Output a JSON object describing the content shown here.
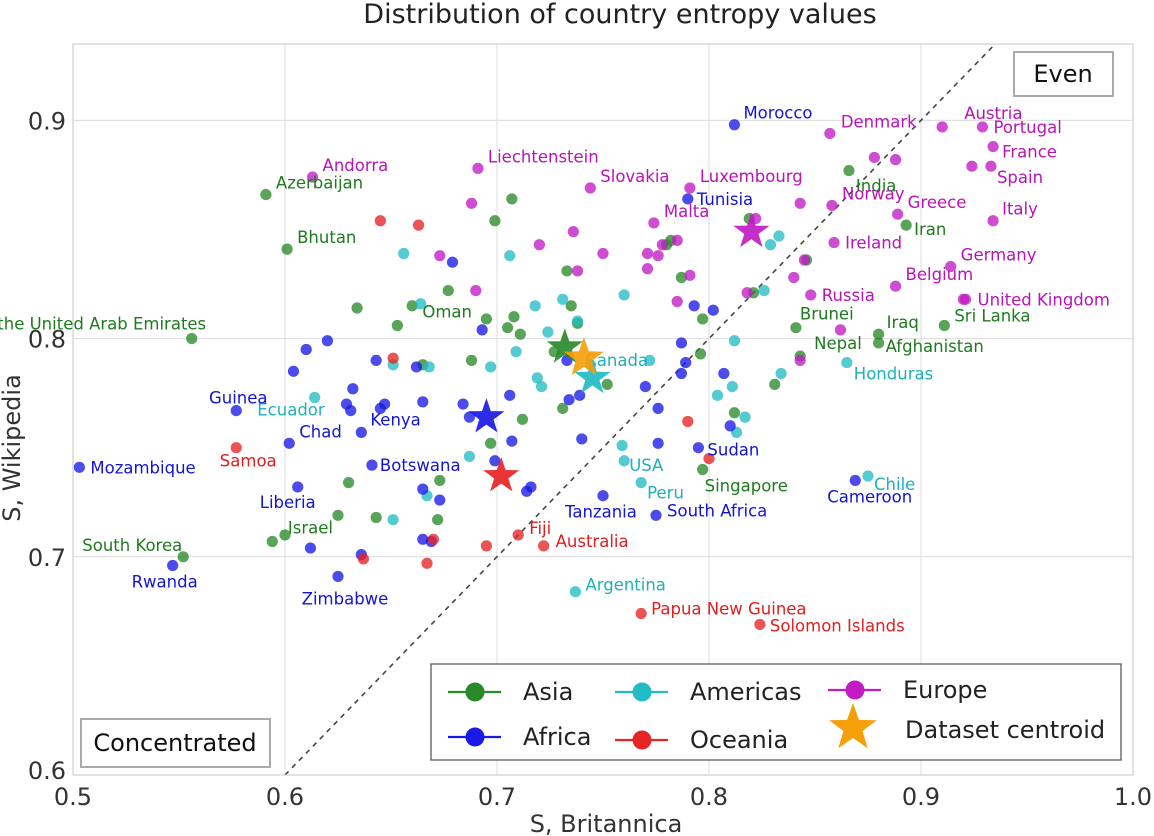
{
  "chart_data": {
    "type": "scatter",
    "title": "Distribution of country entropy values",
    "xlabel": "S, Britannica",
    "ylabel": "S, Wikipedia",
    "xlim": [
      0.5,
      1.0
    ],
    "ylim": [
      0.6,
      0.935
    ],
    "xticks": [
      "0.5",
      "0.6",
      "0.7",
      "0.8",
      "0.9",
      "1.0"
    ],
    "yticks": [
      "0.6",
      "0.7",
      "0.8",
      "0.9"
    ],
    "grid": true,
    "diagonal_reference_line": true,
    "region_labels": {
      "even": "Even",
      "concentrated": "Concentrated"
    },
    "legend_position": "lower-right",
    "series": [
      {
        "name": "Asia",
        "color": "#2a8a2a",
        "points": [
          {
            "x": 0.591,
            "y": 0.866,
            "label": "Azerbaijan"
          },
          {
            "x": 0.601,
            "y": 0.841,
            "label": "Bhutan"
          },
          {
            "x": 0.556,
            "y": 0.8,
            "label": "the United Arab Emirates"
          },
          {
            "x": 0.653,
            "y": 0.806,
            "label": "Oman"
          },
          {
            "x": 0.552,
            "y": 0.7,
            "label": "South Korea"
          },
          {
            "x": 0.625,
            "y": 0.719,
            "label": "Israel"
          },
          {
            "x": 0.797,
            "y": 0.74,
            "label": "Singapore"
          },
          {
            "x": 0.866,
            "y": 0.877,
            "label": "India"
          },
          {
            "x": 0.893,
            "y": 0.852,
            "label": "Iran"
          },
          {
            "x": 0.841,
            "y": 0.805,
            "label": "Brunei"
          },
          {
            "x": 0.88,
            "y": 0.802,
            "label": "Iraq"
          },
          {
            "x": 0.88,
            "y": 0.798,
            "label": "Afghanistan"
          },
          {
            "x": 0.843,
            "y": 0.792,
            "label": "Nepal"
          },
          {
            "x": 0.911,
            "y": 0.806,
            "label": "Sri Lanka"
          },
          {
            "x": 0.594,
            "y": 0.707
          },
          {
            "x": 0.6,
            "y": 0.71
          },
          {
            "x": 0.63,
            "y": 0.734
          },
          {
            "x": 0.643,
            "y": 0.718
          },
          {
            "x": 0.672,
            "y": 0.717
          },
          {
            "x": 0.673,
            "y": 0.735
          },
          {
            "x": 0.665,
            "y": 0.788
          },
          {
            "x": 0.634,
            "y": 0.814
          },
          {
            "x": 0.66,
            "y": 0.815
          },
          {
            "x": 0.677,
            "y": 0.822
          },
          {
            "x": 0.695,
            "y": 0.809
          },
          {
            "x": 0.705,
            "y": 0.805
          },
          {
            "x": 0.708,
            "y": 0.81
          },
          {
            "x": 0.711,
            "y": 0.802
          },
          {
            "x": 0.688,
            "y": 0.79
          },
          {
            "x": 0.733,
            "y": 0.831
          },
          {
            "x": 0.738,
            "y": 0.807
          },
          {
            "x": 0.735,
            "y": 0.815
          },
          {
            "x": 0.699,
            "y": 0.854
          },
          {
            "x": 0.707,
            "y": 0.864
          },
          {
            "x": 0.727,
            "y": 0.794
          },
          {
            "x": 0.752,
            "y": 0.779
          },
          {
            "x": 0.731,
            "y": 0.768
          },
          {
            "x": 0.712,
            "y": 0.763
          },
          {
            "x": 0.697,
            "y": 0.752
          },
          {
            "x": 0.782,
            "y": 0.845
          },
          {
            "x": 0.78,
            "y": 0.843
          },
          {
            "x": 0.787,
            "y": 0.828
          },
          {
            "x": 0.797,
            "y": 0.809
          },
          {
            "x": 0.796,
            "y": 0.793
          },
          {
            "x": 0.812,
            "y": 0.766
          },
          {
            "x": 0.831,
            "y": 0.779
          },
          {
            "x": 0.819,
            "y": 0.855
          },
          {
            "x": 0.846,
            "y": 0.836
          },
          {
            "x": 0.821,
            "y": 0.821
          }
        ]
      },
      {
        "name": "Americas",
        "color": "#22bcc4",
        "points": [
          {
            "x": 0.744,
            "y": 0.788,
            "label": "Canada"
          },
          {
            "x": 0.865,
            "y": 0.789,
            "label": "Honduras"
          },
          {
            "x": 0.614,
            "y": 0.773,
            "label": "Ecuador"
          },
          {
            "x": 0.76,
            "y": 0.744,
            "label": "USA"
          },
          {
            "x": 0.768,
            "y": 0.734,
            "label": "Peru"
          },
          {
            "x": 0.875,
            "y": 0.737,
            "label": "Chile"
          },
          {
            "x": 0.737,
            "y": 0.684,
            "label": "Argentina"
          },
          {
            "x": 0.656,
            "y": 0.839
          },
          {
            "x": 0.664,
            "y": 0.816
          },
          {
            "x": 0.706,
            "y": 0.838
          },
          {
            "x": 0.724,
            "y": 0.803
          },
          {
            "x": 0.718,
            "y": 0.815
          },
          {
            "x": 0.731,
            "y": 0.818
          },
          {
            "x": 0.738,
            "y": 0.808
          },
          {
            "x": 0.76,
            "y": 0.82
          },
          {
            "x": 0.772,
            "y": 0.79
          },
          {
            "x": 0.709,
            "y": 0.794
          },
          {
            "x": 0.719,
            "y": 0.782
          },
          {
            "x": 0.721,
            "y": 0.778
          },
          {
            "x": 0.697,
            "y": 0.787
          },
          {
            "x": 0.651,
            "y": 0.788
          },
          {
            "x": 0.668,
            "y": 0.787
          },
          {
            "x": 0.687,
            "y": 0.746
          },
          {
            "x": 0.667,
            "y": 0.728
          },
          {
            "x": 0.651,
            "y": 0.717
          },
          {
            "x": 0.759,
            "y": 0.751
          },
          {
            "x": 0.812,
            "y": 0.799
          },
          {
            "x": 0.811,
            "y": 0.778
          },
          {
            "x": 0.804,
            "y": 0.774
          },
          {
            "x": 0.813,
            "y": 0.757
          },
          {
            "x": 0.817,
            "y": 0.764
          },
          {
            "x": 0.834,
            "y": 0.784
          },
          {
            "x": 0.826,
            "y": 0.822
          },
          {
            "x": 0.833,
            "y": 0.847
          },
          {
            "x": 0.829,
            "y": 0.843
          }
        ]
      },
      {
        "name": "Europe",
        "color": "#c21bc4",
        "points": [
          {
            "x": 0.613,
            "y": 0.874,
            "label": "Andorra"
          },
          {
            "x": 0.691,
            "y": 0.878,
            "label": "Liechtenstein"
          },
          {
            "x": 0.744,
            "y": 0.869,
            "label": "Slovakia"
          },
          {
            "x": 0.791,
            "y": 0.869,
            "label": "Luxembourg"
          },
          {
            "x": 0.774,
            "y": 0.853,
            "label": "Malta"
          },
          {
            "x": 0.857,
            "y": 0.894,
            "label": "Denmark"
          },
          {
            "x": 0.91,
            "y": 0.897,
            "label": "Austria"
          },
          {
            "x": 0.929,
            "y": 0.897,
            "label": "Portugal"
          },
          {
            "x": 0.934,
            "y": 0.888,
            "label": "France"
          },
          {
            "x": 0.933,
            "y": 0.879,
            "label": "Spain"
          },
          {
            "x": 0.858,
            "y": 0.861,
            "label": "Norway"
          },
          {
            "x": 0.889,
            "y": 0.857,
            "label": "Greece"
          },
          {
            "x": 0.934,
            "y": 0.854,
            "label": "Italy"
          },
          {
            "x": 0.859,
            "y": 0.844,
            "label": "Ireland"
          },
          {
            "x": 0.914,
            "y": 0.833,
            "label": "Germany"
          },
          {
            "x": 0.888,
            "y": 0.824,
            "label": "Belgium"
          },
          {
            "x": 0.848,
            "y": 0.82,
            "label": "Russia"
          },
          {
            "x": 0.921,
            "y": 0.818,
            "label": "United Kingdom"
          },
          {
            "x": 0.688,
            "y": 0.862
          },
          {
            "x": 0.72,
            "y": 0.843
          },
          {
            "x": 0.736,
            "y": 0.849
          },
          {
            "x": 0.738,
            "y": 0.831
          },
          {
            "x": 0.75,
            "y": 0.839
          },
          {
            "x": 0.673,
            "y": 0.838
          },
          {
            "x": 0.69,
            "y": 0.822
          },
          {
            "x": 0.771,
            "y": 0.839
          },
          {
            "x": 0.771,
            "y": 0.832
          },
          {
            "x": 0.776,
            "y": 0.838
          },
          {
            "x": 0.778,
            "y": 0.843
          },
          {
            "x": 0.785,
            "y": 0.845
          },
          {
            "x": 0.785,
            "y": 0.817
          },
          {
            "x": 0.791,
            "y": 0.829
          },
          {
            "x": 0.822,
            "y": 0.855
          },
          {
            "x": 0.818,
            "y": 0.821
          },
          {
            "x": 0.84,
            "y": 0.828
          },
          {
            "x": 0.843,
            "y": 0.79
          },
          {
            "x": 0.862,
            "y": 0.804
          },
          {
            "x": 0.845,
            "y": 0.836
          },
          {
            "x": 0.878,
            "y": 0.883
          },
          {
            "x": 0.888,
            "y": 0.882
          },
          {
            "x": 0.924,
            "y": 0.879
          },
          {
            "x": 0.92,
            "y": 0.818
          },
          {
            "x": 0.843,
            "y": 0.862
          }
        ]
      },
      {
        "name": "Africa",
        "color": "#1a1ae6",
        "points": [
          {
            "x": 0.812,
            "y": 0.898,
            "label": "Morocco"
          },
          {
            "x": 0.79,
            "y": 0.864,
            "label": "Tunisia"
          },
          {
            "x": 0.577,
            "y": 0.767,
            "label": "Guinea"
          },
          {
            "x": 0.602,
            "y": 0.752,
            "label": "Chad"
          },
          {
            "x": 0.636,
            "y": 0.757,
            "label": "Kenya"
          },
          {
            "x": 0.503,
            "y": 0.741,
            "label": "Mozambique"
          },
          {
            "x": 0.641,
            "y": 0.742,
            "label": "Botswana"
          },
          {
            "x": 0.795,
            "y": 0.75,
            "label": "Sudan"
          },
          {
            "x": 0.606,
            "y": 0.732,
            "label": "Liberia"
          },
          {
            "x": 0.75,
            "y": 0.728,
            "label": "Tanzania"
          },
          {
            "x": 0.775,
            "y": 0.719,
            "label": "South Africa"
          },
          {
            "x": 0.869,
            "y": 0.735,
            "label": "Cameroon"
          },
          {
            "x": 0.547,
            "y": 0.696,
            "label": "Rwanda"
          },
          {
            "x": 0.625,
            "y": 0.691,
            "label": "Zimbabwe"
          },
          {
            "x": 0.61,
            "y": 0.795
          },
          {
            "x": 0.62,
            "y": 0.799
          },
          {
            "x": 0.604,
            "y": 0.785
          },
          {
            "x": 0.643,
            "y": 0.79
          },
          {
            "x": 0.632,
            "y": 0.777
          },
          {
            "x": 0.629,
            "y": 0.77
          },
          {
            "x": 0.631,
            "y": 0.767
          },
          {
            "x": 0.645,
            "y": 0.768
          },
          {
            "x": 0.647,
            "y": 0.77
          },
          {
            "x": 0.662,
            "y": 0.787
          },
          {
            "x": 0.665,
            "y": 0.771
          },
          {
            "x": 0.684,
            "y": 0.77
          },
          {
            "x": 0.687,
            "y": 0.764
          },
          {
            "x": 0.693,
            "y": 0.804
          },
          {
            "x": 0.706,
            "y": 0.774
          },
          {
            "x": 0.707,
            "y": 0.753
          },
          {
            "x": 0.699,
            "y": 0.744
          },
          {
            "x": 0.665,
            "y": 0.731
          },
          {
            "x": 0.673,
            "y": 0.726
          },
          {
            "x": 0.665,
            "y": 0.708
          },
          {
            "x": 0.669,
            "y": 0.707
          },
          {
            "x": 0.612,
            "y": 0.704
          },
          {
            "x": 0.636,
            "y": 0.701
          },
          {
            "x": 0.714,
            "y": 0.73
          },
          {
            "x": 0.716,
            "y": 0.732
          },
          {
            "x": 0.734,
            "y": 0.772
          },
          {
            "x": 0.739,
            "y": 0.774
          },
          {
            "x": 0.74,
            "y": 0.754
          },
          {
            "x": 0.733,
            "y": 0.79
          },
          {
            "x": 0.77,
            "y": 0.778
          },
          {
            "x": 0.776,
            "y": 0.768
          },
          {
            "x": 0.776,
            "y": 0.752
          },
          {
            "x": 0.787,
            "y": 0.784
          },
          {
            "x": 0.789,
            "y": 0.789
          },
          {
            "x": 0.787,
            "y": 0.798
          },
          {
            "x": 0.793,
            "y": 0.815
          },
          {
            "x": 0.802,
            "y": 0.813
          },
          {
            "x": 0.807,
            "y": 0.784
          },
          {
            "x": 0.81,
            "y": 0.76
          },
          {
            "x": 0.679,
            "y": 0.835
          }
        ]
      },
      {
        "name": "Oceania",
        "color": "#e62424",
        "points": [
          {
            "x": 0.577,
            "y": 0.75,
            "label": "Samoa"
          },
          {
            "x": 0.71,
            "y": 0.71,
            "label": "Fiji"
          },
          {
            "x": 0.722,
            "y": 0.705,
            "label": "Australia"
          },
          {
            "x": 0.768,
            "y": 0.674,
            "label": "Papua New Guinea"
          },
          {
            "x": 0.824,
            "y": 0.669,
            "label": "Solomon Islands"
          },
          {
            "x": 0.645,
            "y": 0.854
          },
          {
            "x": 0.663,
            "y": 0.852
          },
          {
            "x": 0.651,
            "y": 0.791
          },
          {
            "x": 0.637,
            "y": 0.699
          },
          {
            "x": 0.667,
            "y": 0.697
          },
          {
            "x": 0.67,
            "y": 0.708
          },
          {
            "x": 0.695,
            "y": 0.705
          },
          {
            "x": 0.79,
            "y": 0.762
          },
          {
            "x": 0.8,
            "y": 0.745
          }
        ]
      }
    ],
    "centroids": [
      {
        "name": "Asia",
        "x": 0.732,
        "y": 0.796
      },
      {
        "name": "Americas",
        "x": 0.745,
        "y": 0.782
      },
      {
        "name": "Europe",
        "x": 0.82,
        "y": 0.849
      },
      {
        "name": "Africa",
        "x": 0.695,
        "y": 0.764
      },
      {
        "name": "Oceania",
        "x": 0.702,
        "y": 0.737
      },
      {
        "name": "Dataset centroid",
        "x": 0.741,
        "y": 0.791
      }
    ],
    "legend": [
      {
        "label": "Asia",
        "color": "#2a8a2a",
        "marker": "line-dot"
      },
      {
        "label": "Americas",
        "color": "#22bcc4",
        "marker": "line-dot"
      },
      {
        "label": "Europe",
        "color": "#c21bc4",
        "marker": "line-dot"
      },
      {
        "label": "Africa",
        "color": "#1a1ae6",
        "marker": "line-dot"
      },
      {
        "label": "Oceania",
        "color": "#e62424",
        "marker": "line-dot"
      },
      {
        "label": "Dataset centroid",
        "color": "#f5a00a",
        "marker": "star"
      }
    ],
    "dataset_centroid_color": "#f5a00a"
  }
}
